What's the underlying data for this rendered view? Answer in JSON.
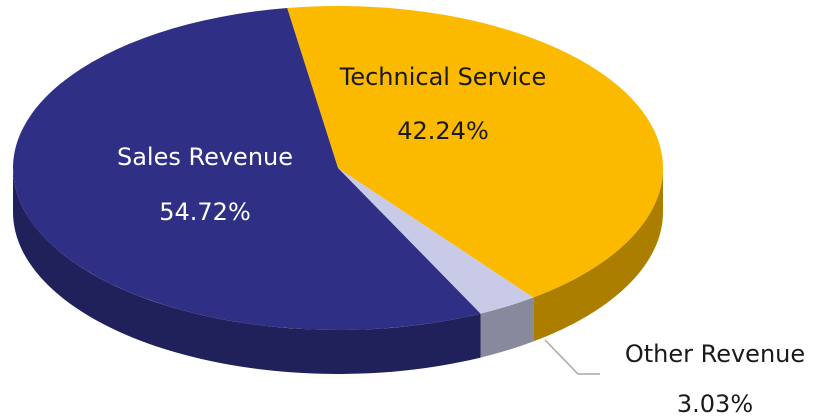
{
  "chart_data": {
    "type": "pie",
    "categories": [
      "Technical Service",
      "Other Revenue",
      "Sales Revenue"
    ],
    "values": [
      42.24,
      3.03,
      54.72
    ],
    "value_labels": [
      "42.24%",
      "3.03%",
      "54.72%"
    ],
    "colors": [
      "#fbb900",
      "#c9c9e8",
      "#2f2f85"
    ]
  }
}
